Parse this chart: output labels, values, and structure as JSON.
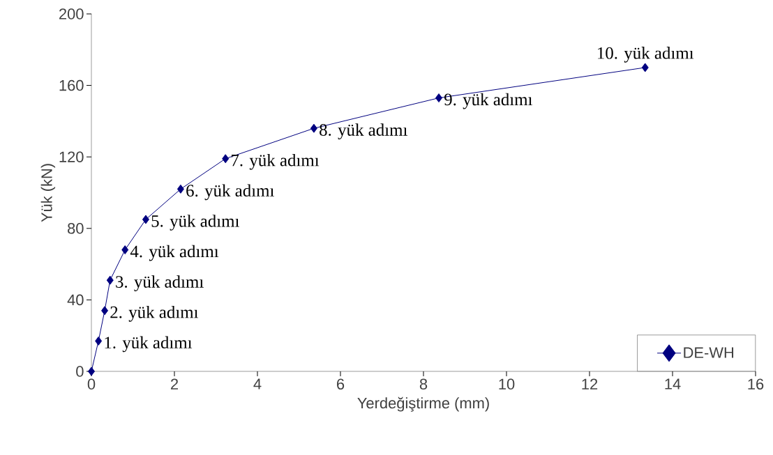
{
  "chart_data": {
    "type": "line",
    "xlabel": "Yerdeğiştirme (mm)",
    "ylabel": "Yük (kN)",
    "x": [
      0,
      0.17,
      0.32,
      0.45,
      0.81,
      1.31,
      2.15,
      3.23,
      5.36,
      8.37,
      13.34
    ],
    "series": [
      {
        "name": "DE-WH",
        "color": "#000080",
        "values": [
          0,
          17,
          34,
          51,
          68,
          85,
          102,
          119,
          136,
          153,
          170
        ]
      }
    ],
    "xlim": [
      0,
      16
    ],
    "xticks": [
      0,
      2,
      4,
      6,
      8,
      10,
      12,
      14,
      16
    ],
    "ylim": [
      0,
      200
    ],
    "yticks": [
      0,
      40,
      80,
      120,
      160,
      200
    ],
    "grid": false,
    "legend": "bottom right",
    "marker": "diamond",
    "line_style": "solid",
    "annotations": [
      {
        "text": "1. yük adımı",
        "x": 0.17,
        "y": 17
      },
      {
        "text": "2. yük adımı",
        "x": 0.32,
        "y": 34
      },
      {
        "text": "3. yük adımı",
        "x": 0.45,
        "y": 51
      },
      {
        "text": "4. yük adımı",
        "x": 0.81,
        "y": 68
      },
      {
        "text": "5. yük adımı",
        "x": 1.31,
        "y": 85
      },
      {
        "text": "6. yük adımı",
        "x": 2.15,
        "y": 102
      },
      {
        "text": "7. yük adımı",
        "x": 3.23,
        "y": 119
      },
      {
        "text": "8. yük adımı",
        "x": 5.36,
        "y": 136
      },
      {
        "text": "9. yük adımı",
        "x": 8.37,
        "y": 153
      },
      {
        "text": "10. yük adımı",
        "x": 13.34,
        "y": 170
      }
    ]
  }
}
